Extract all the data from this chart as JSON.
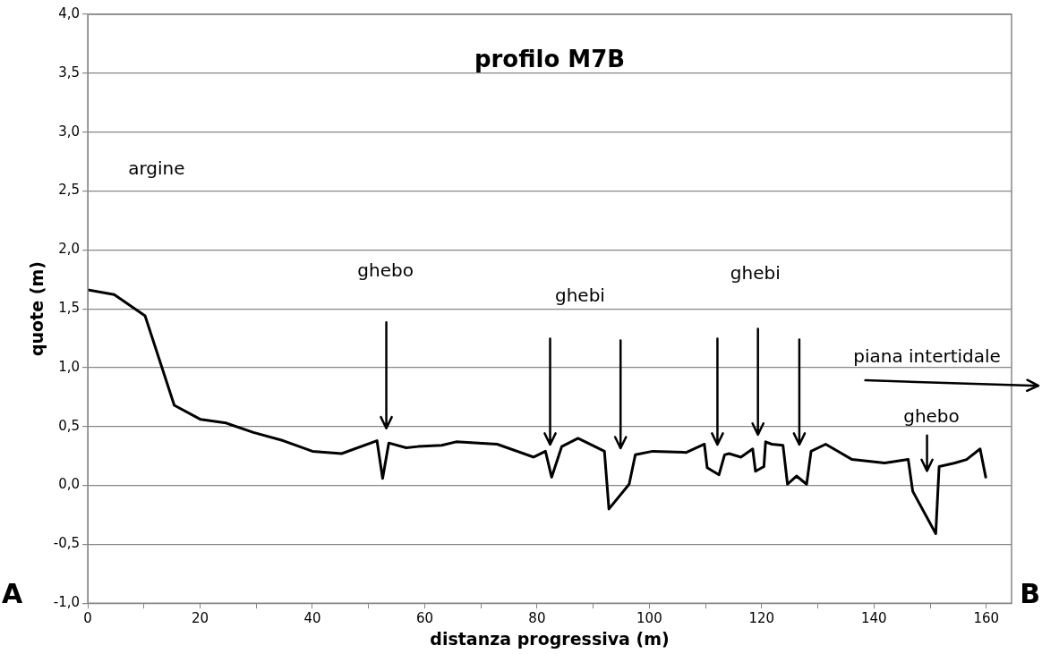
{
  "chart_data": {
    "type": "line",
    "title": "profilo M7B",
    "xlabel": "distanza progressiva (m)",
    "ylabel": "quote (m)",
    "x": [
      0,
      4.7,
      10.2,
      15.4,
      20.1,
      24.6,
      29.5,
      34.8,
      40.0,
      45.2,
      51.5,
      52.5,
      53.6,
      56.7,
      58.8,
      63.0,
      65.6,
      72.9,
      79.4,
      81.5,
      82.6,
      84.4,
      87.3,
      92.0,
      92.8,
      96.4,
      97.5,
      100.6,
      106.6,
      109.8,
      110.3,
      112.4,
      113.4,
      114.2,
      116.3,
      118.4,
      118.9,
      120.4,
      120.7,
      121.8,
      123.8,
      124.6,
      126.2,
      128.0,
      128.8,
      131.4,
      136.1,
      141.9,
      146.1,
      146.9,
      151.0,
      151.6,
      154.4,
      156.5,
      158.9,
      159.9
    ],
    "series": [
      {
        "color": "#000000",
        "values": [
          1.66,
          1.62,
          1.44,
          0.68,
          0.56,
          0.53,
          0.45,
          0.38,
          0.29,
          0.27,
          0.38,
          0.06,
          0.36,
          0.32,
          0.33,
          0.34,
          0.37,
          0.35,
          0.24,
          0.29,
          0.07,
          0.33,
          0.4,
          0.29,
          -0.2,
          0.01,
          0.26,
          0.29,
          0.28,
          0.35,
          0.15,
          0.09,
          0.26,
          0.27,
          0.24,
          0.31,
          0.12,
          0.16,
          0.37,
          0.35,
          0.34,
          0.01,
          0.08,
          0.01,
          0.29,
          0.35,
          0.22,
          0.19,
          0.22,
          -0.05,
          -0.41,
          0.16,
          0.19,
          0.22,
          0.31,
          0.07
        ]
      }
    ],
    "xlim": [
      0,
      164.5
    ],
    "xticks": [
      0,
      {
        "value": 10,
        "label": null
      },
      20,
      {
        "value": 30,
        "label": null
      },
      40,
      {
        "value": 50,
        "label": null
      },
      60,
      {
        "value": 70,
        "label": null
      },
      80,
      {
        "value": 90,
        "label": null
      },
      100,
      {
        "value": 110,
        "label": null
      },
      120,
      {
        "value": 130,
        "label": null
      },
      140,
      {
        "value": 150,
        "label": null
      },
      160
    ],
    "ylim": [
      -1,
      4
    ],
    "yticks": [
      {
        "value": -1,
        "label": "-1,0"
      },
      {
        "value": -0.5,
        "label": "-0,5"
      },
      {
        "value": 0,
        "label": "0,0"
      },
      {
        "value": 0.5,
        "label": "0,5"
      },
      {
        "value": 1,
        "label": "1,0"
      },
      {
        "value": 1.5,
        "label": "1,5"
      },
      {
        "value": 2,
        "label": "2,0"
      },
      {
        "value": 2.5,
        "label": "2,5"
      },
      {
        "value": 3,
        "label": "3,0"
      },
      {
        "value": 3.5,
        "label": "3,5"
      },
      {
        "value": 4,
        "label": "4,0"
      }
    ],
    "grid": "y",
    "legend": false,
    "marker": "none",
    "line_style": "solid",
    "annotations": [
      "argine",
      "ghebo",
      "ghebi",
      "ghebi",
      "piana intertidale",
      "ghebo",
      "A",
      "B"
    ]
  }
}
